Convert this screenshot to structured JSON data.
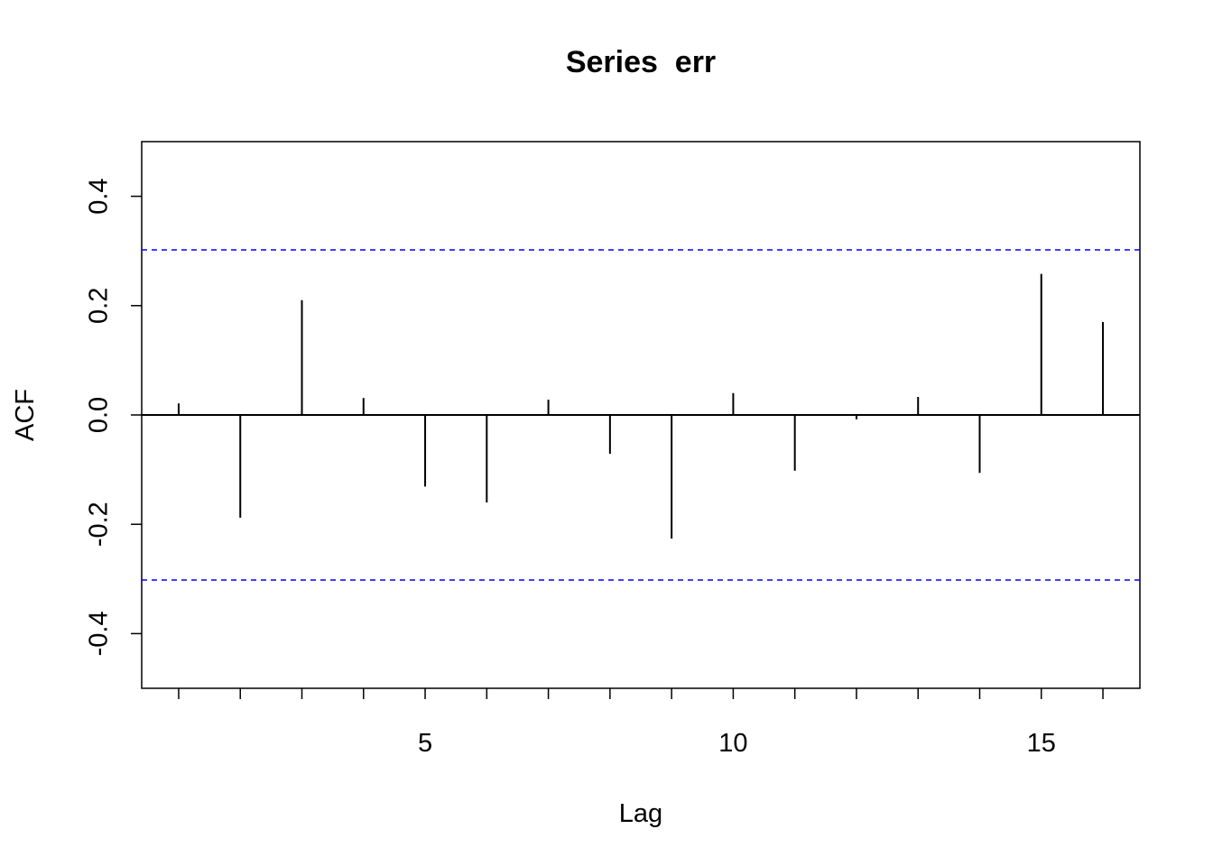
{
  "chart_data": {
    "type": "acf",
    "title": "Series  err",
    "x_label": "Lag",
    "y_label": "ACF",
    "x": [
      1,
      2,
      3,
      4,
      5,
      6,
      7,
      8,
      9,
      10,
      11,
      12,
      13,
      14,
      15,
      16
    ],
    "values": [
      0.021,
      -0.188,
      0.21,
      0.031,
      -0.131,
      -0.16,
      0.028,
      -0.071,
      -0.226,
      0.04,
      -0.102,
      -0.008,
      0.033,
      -0.106,
      0.258,
      0.17
    ],
    "color": "#000000",
    "xlim": [
      0.4,
      16.6
    ],
    "xticks": [
      5,
      10,
      15
    ],
    "xminorticks": [
      1,
      2,
      3,
      4,
      6,
      7,
      8,
      9,
      11,
      12,
      13,
      14,
      16
    ],
    "ylim": [
      -0.5,
      0.5
    ],
    "yticks": [
      -0.4,
      -0.2,
      {
        "value": 0,
        "label": "0.0"
      },
      0.2,
      0.4
    ],
    "ci_lines": [
      0.302,
      -0.302
    ],
    "ci_color": "#0000ff"
  }
}
